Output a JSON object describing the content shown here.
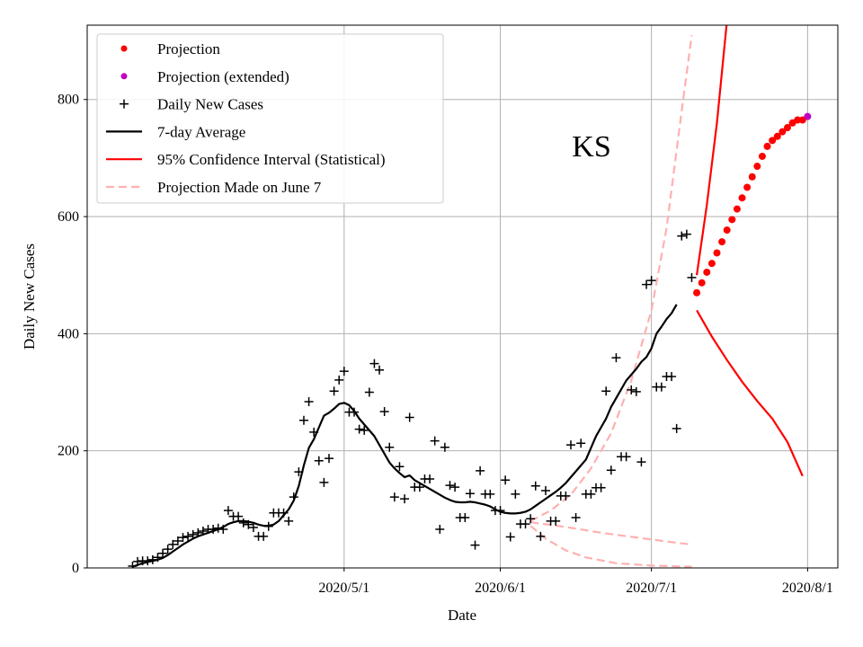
{
  "chart_data": {
    "type": "line",
    "title": "",
    "annotation": "KS",
    "xlabel": "Date",
    "ylabel": "Daily New Cases",
    "xlim": [
      "2020-03-11",
      "2020-08-07"
    ],
    "ylim": [
      0,
      927
    ],
    "grid": true,
    "legend_position": "top-left",
    "x_ticks": [
      {
        "date": "2020-05-01",
        "label": "2020/5/1"
      },
      {
        "date": "2020-06-01",
        "label": "2020/6/1"
      },
      {
        "date": "2020-07-01",
        "label": "2020/7/1"
      },
      {
        "date": "2020-08-01",
        "label": "2020/8/1"
      }
    ],
    "y_ticks": [
      {
        "value": 0,
        "label": "0"
      },
      {
        "value": 200,
        "label": "200"
      },
      {
        "value": 400,
        "label": "400"
      },
      {
        "value": 600,
        "label": "600"
      },
      {
        "value": 800,
        "label": "800"
      }
    ],
    "legend": [
      {
        "label": "Projection",
        "style": "dot",
        "color": "#ff0000"
      },
      {
        "label": "Projection (extended)",
        "style": "dot",
        "color": "#bf00bf"
      },
      {
        "label": "Daily New Cases",
        "style": "plus",
        "color": "#000000"
      },
      {
        "label": "7-day Average",
        "style": "line",
        "color": "#000000"
      },
      {
        "label": "95% Confidence Interval (Statistical)",
        "style": "line",
        "color": "#ff0000"
      },
      {
        "label": "Projection Made on June 7",
        "style": "dash",
        "color": "#ffb0b0"
      }
    ],
    "daily_new_cases": {
      "start_date": "2020-03-20",
      "values": [
        3,
        11,
        12,
        12,
        14,
        18,
        25,
        32,
        40,
        46,
        52,
        54,
        57,
        60,
        63,
        66,
        66,
        68,
        66,
        98,
        88,
        88,
        77,
        74,
        69,
        54,
        54,
        71,
        94,
        94,
        94,
        80,
        121,
        164,
        252,
        284,
        232,
        183,
        146,
        187,
        302,
        321,
        336,
        266,
        266,
        237,
        235,
        300,
        349,
        338,
        267,
        206,
        121,
        173,
        118,
        257,
        138,
        138,
        152,
        152,
        217,
        66,
        206,
        141,
        138,
        86,
        86,
        127,
        39,
        166,
        126,
        126,
        98,
        98,
        150,
        53,
        126,
        75,
        75,
        84,
        140,
        54,
        132,
        80,
        80,
        123,
        123,
        210,
        86,
        213,
        126,
        126,
        137,
        137,
        302,
        167,
        359,
        190,
        190,
        304,
        301,
        181,
        484,
        491,
        309,
        309,
        327,
        327,
        238,
        567,
        570,
        496
      ]
    },
    "seven_day_average": {
      "start_date": "2020-03-20",
      "values": [
        2,
        5,
        8,
        10,
        12,
        14,
        17,
        22,
        28,
        34,
        40,
        45,
        50,
        54,
        57,
        60,
        63,
        66,
        70,
        75,
        78,
        80,
        80,
        79,
        77,
        74,
        72,
        72,
        74,
        80,
        90,
        100,
        115,
        140,
        175,
        205,
        220,
        240,
        260,
        265,
        272,
        280,
        282,
        278,
        268,
        255,
        245,
        235,
        225,
        210,
        195,
        180,
        170,
        162,
        155,
        158,
        150,
        145,
        140,
        135,
        130,
        125,
        120,
        116,
        113,
        112,
        112,
        113,
        112,
        110,
        108,
        105,
        100,
        96,
        94,
        93,
        93,
        94,
        96,
        100,
        106,
        112,
        118,
        124,
        130,
        137,
        145,
        155,
        165,
        175,
        185,
        205,
        225,
        240,
        255,
        275,
        290,
        305,
        320,
        330,
        340,
        352,
        360,
        375,
        400,
        412,
        425,
        435,
        450
      ]
    },
    "projection": {
      "start_date": "2020-07-10",
      "values": [
        470,
        487,
        505,
        520,
        538,
        557,
        577,
        595,
        613,
        632,
        650,
        668,
        686,
        703,
        720,
        730,
        737,
        745,
        752,
        760,
        765
      ]
    },
    "projection_extended": {
      "points": [
        {
          "date": "2020-07-31",
          "value": 765
        },
        {
          "date": "2020-08-01",
          "value": 771
        }
      ]
    },
    "confidence_interval": {
      "upper": [
        {
          "date": "2020-07-10",
          "value": 500
        },
        {
          "date": "2020-07-12",
          "value": 620
        },
        {
          "date": "2020-07-14",
          "value": 760
        },
        {
          "date": "2020-07-16",
          "value": 935
        }
      ],
      "lower": [
        {
          "date": "2020-07-10",
          "value": 440
        },
        {
          "date": "2020-07-13",
          "value": 395
        },
        {
          "date": "2020-07-16",
          "value": 355
        },
        {
          "date": "2020-07-19",
          "value": 318
        },
        {
          "date": "2020-07-22",
          "value": 285
        },
        {
          "date": "2020-07-25",
          "value": 255
        },
        {
          "date": "2020-07-28",
          "value": 215
        },
        {
          "date": "2020-07-31",
          "value": 157
        }
      ]
    },
    "june7_projection": {
      "upper": [
        {
          "date": "2020-06-07",
          "value": 80
        },
        {
          "date": "2020-06-11",
          "value": 98
        },
        {
          "date": "2020-06-15",
          "value": 125
        },
        {
          "date": "2020-06-19",
          "value": 170
        },
        {
          "date": "2020-06-23",
          "value": 230
        },
        {
          "date": "2020-06-27",
          "value": 320
        },
        {
          "date": "2020-07-01",
          "value": 440
        },
        {
          "date": "2020-07-04",
          "value": 580
        },
        {
          "date": "2020-07-07",
          "value": 780
        },
        {
          "date": "2020-07-09",
          "value": 910
        }
      ],
      "middle": [
        {
          "date": "2020-06-07",
          "value": 78
        },
        {
          "date": "2020-06-14",
          "value": 70
        },
        {
          "date": "2020-06-21",
          "value": 60
        },
        {
          "date": "2020-06-28",
          "value": 52
        },
        {
          "date": "2020-07-05",
          "value": 44
        },
        {
          "date": "2020-07-09",
          "value": 40
        }
      ],
      "lower": [
        {
          "date": "2020-06-07",
          "value": 72
        },
        {
          "date": "2020-06-10",
          "value": 50
        },
        {
          "date": "2020-06-14",
          "value": 30
        },
        {
          "date": "2020-06-18",
          "value": 18
        },
        {
          "date": "2020-06-24",
          "value": 8
        },
        {
          "date": "2020-07-01",
          "value": 4
        },
        {
          "date": "2020-07-09",
          "value": 2
        }
      ]
    }
  }
}
